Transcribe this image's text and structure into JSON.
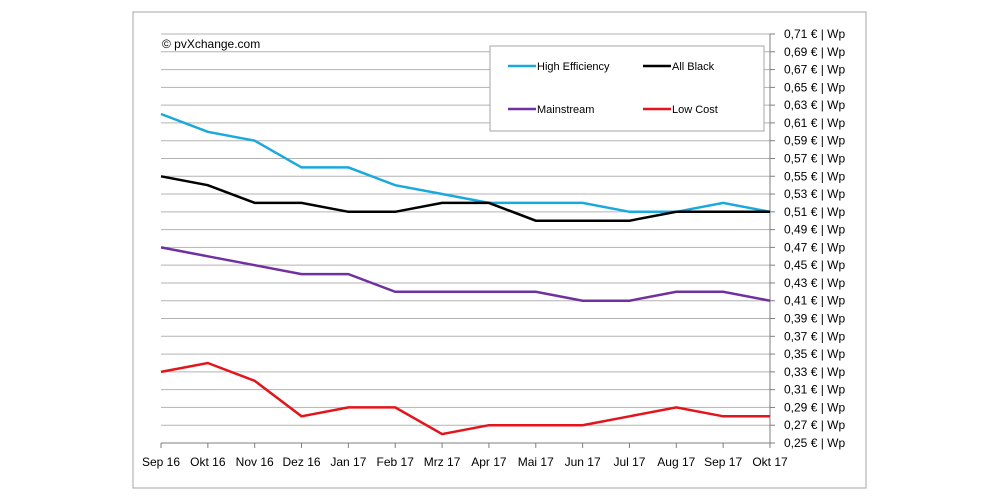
{
  "copyright": "© pvXchange.com",
  "chart_data": {
    "type": "line",
    "title": "",
    "xlabel": "",
    "ylabel": "",
    "categories": [
      "Sep 16",
      "Okt 16",
      "Nov 16",
      "Dez 16",
      "Jan 17",
      "Feb 17",
      "Mrz 17",
      "Apr 17",
      "Mai 17",
      "Jun 17",
      "Jul 17",
      "Aug 17",
      "Sep 17",
      "Okt 17"
    ],
    "ylim": [
      0.25,
      0.71
    ],
    "ystep": 0.02,
    "ytick_labels": [
      "0,71 € | Wp",
      "0,69 € | Wp",
      "0,67 € | Wp",
      "0,65 € | Wp",
      "0,63 € | Wp",
      "0,61 € | Wp",
      "0,59 € | Wp",
      "0,57 € | Wp",
      "0,55 € | Wp",
      "0,53 € | Wp",
      "0,51 € | Wp",
      "0,49 € | Wp",
      "0,47 € | Wp",
      "0,45 € | Wp",
      "0,43 € | Wp",
      "0,41 € | Wp",
      "0,39 € | Wp",
      "0,37 € | Wp",
      "0,35 € | Wp",
      "0,33 € | Wp",
      "0,31 € | Wp",
      "0,29 € | Wp",
      "0,27 € | Wp",
      "0,25 € | Wp"
    ],
    "grid": true,
    "legend_position": "top-right",
    "series": [
      {
        "name": "High Efficiency",
        "color": "#1ba9dd",
        "values": [
          0.62,
          0.6,
          0.59,
          0.56,
          0.56,
          0.54,
          0.53,
          0.52,
          0.52,
          0.52,
          0.51,
          0.51,
          0.52,
          0.51
        ]
      },
      {
        "name": "All Black",
        "color": "#000000",
        "values": [
          0.55,
          0.54,
          0.52,
          0.52,
          0.51,
          0.51,
          0.52,
          0.52,
          0.5,
          0.5,
          0.5,
          0.51,
          0.51,
          0.51
        ]
      },
      {
        "name": "Mainstream",
        "color": "#7030a0",
        "values": [
          0.47,
          0.46,
          0.45,
          0.44,
          0.44,
          0.42,
          0.42,
          0.42,
          0.42,
          0.41,
          0.41,
          0.42,
          0.42,
          0.41
        ]
      },
      {
        "name": "Low Cost",
        "color": "#e3141b",
        "values": [
          0.33,
          0.34,
          0.32,
          0.28,
          0.29,
          0.29,
          0.26,
          0.27,
          0.27,
          0.27,
          0.28,
          0.29,
          0.28,
          0.28
        ]
      }
    ]
  }
}
